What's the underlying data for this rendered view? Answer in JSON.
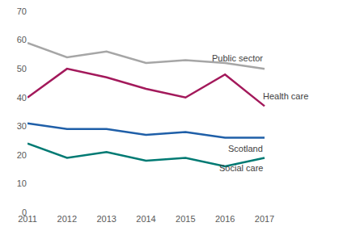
{
  "chart_data": {
    "type": "line",
    "categories": [
      "2011",
      "2012",
      "2013",
      "2014",
      "2015",
      "2016",
      "2017"
    ],
    "series": [
      {
        "name": "Public sector",
        "color": "#a6a6a6",
        "values": [
          59,
          54,
          56,
          52,
          53,
          52,
          50
        ]
      },
      {
        "name": "Health care",
        "color": "#a3195b",
        "values": [
          40,
          50,
          47,
          43,
          40,
          48,
          37
        ]
      },
      {
        "name": "Scotland",
        "color": "#1f5fa8",
        "values": [
          31,
          29,
          29,
          27,
          28,
          26,
          26
        ]
      },
      {
        "name": "Social care",
        "color": "#007a73",
        "values": [
          24,
          19,
          21,
          18,
          19,
          16,
          19
        ]
      }
    ],
    "ylim": [
      0,
      70
    ],
    "yticks": [
      0,
      10,
      20,
      30,
      40,
      50,
      60,
      70
    ],
    "grid": false
  }
}
